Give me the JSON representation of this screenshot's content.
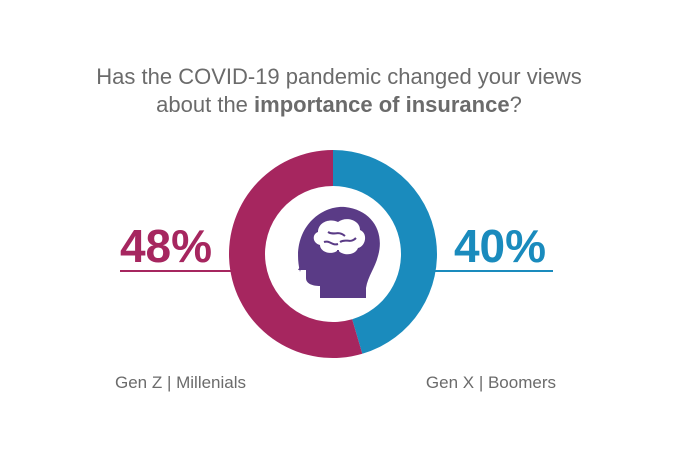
{
  "chart_data": {
    "type": "donut",
    "title": [
      "Has the COVID-19 pandemic changed your views",
      "about the ",
      "importance of insurance",
      "?"
    ],
    "categories": [
      "Gen Z | Millenials",
      "Gen X | Boomers"
    ],
    "values": [
      48,
      40
    ],
    "value_labels": [
      "48%",
      "40%"
    ],
    "colors": [
      "#a6265f",
      "#1a8bbd"
    ]
  }
}
